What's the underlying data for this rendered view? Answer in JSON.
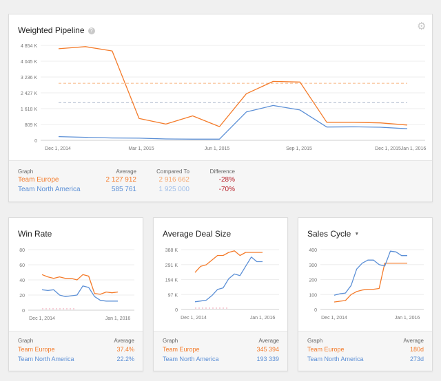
{
  "pipeline": {
    "title": "Weighted Pipeline",
    "help_icon": "question-circle-icon",
    "settings_icon": "gear-icon",
    "footer": {
      "headers": {
        "graph": "Graph",
        "average": "Average",
        "compared": "Compared To",
        "difference": "Difference"
      },
      "rows": [
        {
          "team": "Team Europe",
          "average": "2 127 912",
          "compared": "2 916 662",
          "difference": "-28%"
        },
        {
          "team": "Team North America",
          "average": "585 761",
          "compared": "1 925 000",
          "difference": "-70%"
        }
      ]
    }
  },
  "win_rate": {
    "title": "Win Rate",
    "footer": {
      "headers": {
        "graph": "Graph",
        "average": "Average"
      },
      "rows": [
        {
          "team": "Team Europe",
          "average": "37.4%"
        },
        {
          "team": "Team North America",
          "average": "22.2%"
        }
      ]
    }
  },
  "deal_size": {
    "title": "Average Deal Size",
    "footer": {
      "headers": {
        "graph": "Graph",
        "average": "Average"
      },
      "rows": [
        {
          "team": "Team Europe",
          "average": "345 394"
        },
        {
          "team": "Team North America",
          "average": "193 339"
        }
      ]
    }
  },
  "sales_cycle": {
    "title": "Sales Cycle",
    "dropdown_icon": "caret-down-icon",
    "footer": {
      "headers": {
        "graph": "Graph",
        "average": "Average"
      },
      "rows": [
        {
          "team": "Team Europe",
          "average": "180d"
        },
        {
          "team": "Team North America",
          "average": "273d"
        }
      ]
    }
  },
  "colors": {
    "europe": "#f47b2a",
    "north_america": "#5b8fd6",
    "difference": "#b8212b"
  },
  "chart_data": [
    {
      "type": "line",
      "ylim": [
        0,
        4854
      ],
      "y_ticks": [
        "4 854 K",
        "4 045 K",
        "3 236 K",
        "2 427 K",
        "1 618 K",
        "809 K",
        "0"
      ],
      "x_tick_labels": [
        "Dec 1, 2014",
        "Mar 1, 2015",
        "Jun 1, 2015",
        "Sep 1, 2015",
        "Dec 1, 2015",
        "Jan 1, 2016"
      ],
      "x": [
        "2014-12-01",
        "2015-01-01",
        "2015-02-01",
        "2015-03-01",
        "2015-04-01",
        "2015-05-01",
        "2015-06-01",
        "2015-07-01",
        "2015-08-01",
        "2015-09-01",
        "2015-10-01",
        "2015-11-01",
        "2015-12-01",
        "2016-01-01"
      ],
      "series": [
        {
          "name": "Team Europe",
          "values": [
            4680,
            4790,
            4570,
            1120,
            830,
            1250,
            700,
            2380,
            3010,
            2980,
            920,
            920,
            890,
            780
          ]
        },
        {
          "name": "Team North America",
          "values": [
            190,
            150,
            120,
            110,
            70,
            60,
            60,
            1450,
            1780,
            1550,
            680,
            690,
            670,
            590
          ]
        }
      ],
      "reference_lines": [
        {
          "team": "Team Europe",
          "value": 2917
        },
        {
          "team": "Team North America",
          "value": 1925
        }
      ]
    },
    {
      "type": "line",
      "ylim": [
        0,
        80
      ],
      "y_ticks": [
        "80",
        "60",
        "40",
        "20",
        "0"
      ],
      "x_tick_labels": [
        "Dec 1, 2014",
        "Jan 1, 2016"
      ],
      "series": [
        {
          "name": "Team Europe",
          "values": [
            47,
            44,
            42,
            44,
            42,
            42,
            40,
            47,
            45,
            22,
            21,
            24,
            23,
            24
          ]
        },
        {
          "name": "Team North America",
          "values": [
            27,
            26,
            27,
            20,
            18,
            19,
            20,
            32,
            30,
            18,
            13,
            12,
            12,
            12
          ]
        }
      ]
    },
    {
      "type": "line",
      "ylim": [
        0,
        388
      ],
      "y_ticks": [
        "388 K",
        "291 K",
        "194 K",
        "97 K",
        "0"
      ],
      "x_tick_labels": [
        "Dec 1, 2014",
        "Jan 1, 2016"
      ],
      "series": [
        {
          "name": "Team Europe",
          "values": [
            240,
            280,
            290,
            320,
            350,
            350,
            370,
            380,
            350,
            370,
            370,
            370,
            370
          ]
        },
        {
          "name": "Team North America",
          "values": [
            50,
            55,
            60,
            90,
            130,
            140,
            200,
            230,
            220,
            280,
            340,
            310,
            310
          ]
        }
      ]
    },
    {
      "type": "line",
      "ylim": [
        0,
        400
      ],
      "y_ticks": [
        "400",
        "300",
        "200",
        "100",
        "0"
      ],
      "x_tick_labels": [
        "Dec 1, 2014",
        "Jan 1, 2016"
      ],
      "series": [
        {
          "name": "Team Europe",
          "values": [
            50,
            55,
            60,
            100,
            120,
            130,
            135,
            135,
            140,
            310,
            310,
            310,
            310,
            310
          ]
        },
        {
          "name": "Team North America",
          "values": [
            95,
            105,
            110,
            160,
            270,
            310,
            330,
            330,
            300,
            290,
            390,
            385,
            360,
            360
          ]
        }
      ]
    }
  ]
}
